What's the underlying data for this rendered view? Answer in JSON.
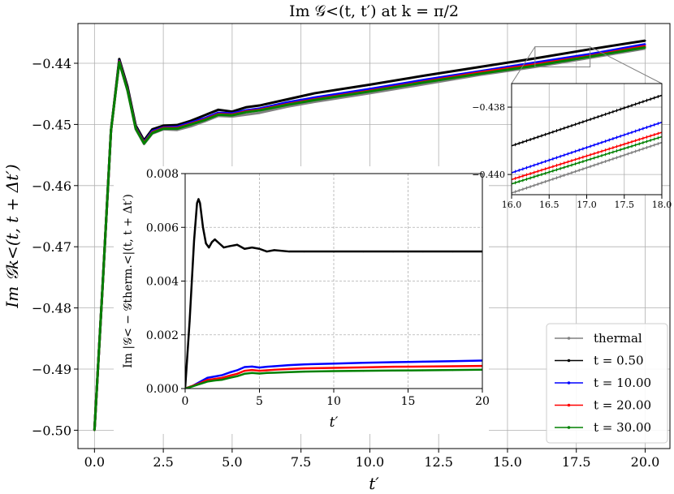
{
  "chart_data": [
    {
      "id": "main",
      "type": "line",
      "title": "Im 𝒢<(t, t′) at k = π/2",
      "xlabel": "t′",
      "ylabel": "Im 𝒢k<(t, t + Δt′)",
      "xlim": [
        -0.6,
        20.9
      ],
      "ylim": [
        -0.503,
        -0.4335
      ],
      "xticks": [
        0.0,
        2.5,
        5.0,
        7.5,
        10.0,
        12.5,
        15.0,
        17.5,
        20.0
      ],
      "xtick_labels": [
        "0.0",
        "2.5",
        "5.0",
        "7.5",
        "10.0",
        "12.5",
        "15.0",
        "17.5",
        "20.0"
      ],
      "yticks": [
        -0.5,
        -0.49,
        -0.48,
        -0.47,
        -0.46,
        -0.45,
        -0.44
      ],
      "ytick_labels": [
        "−0.50",
        "−0.49",
        "−0.48",
        "−0.47",
        "−0.46",
        "−0.45",
        "−0.44"
      ],
      "grid": true,
      "legend_placement": "bottom-right",
      "series": [
        {
          "name": "thermal",
          "color": "#808080",
          "x": [
            0,
            0.3,
            0.6,
            0.9,
            1.2,
            1.5,
            1.8,
            2.1,
            2.5,
            3.0,
            3.5,
            4.0,
            4.5,
            5.0,
            5.5,
            6.0,
            7.0,
            8.0,
            10.0,
            12.0,
            14.0,
            16.0,
            18.0,
            20.0
          ],
          "y": [
            -0.5,
            -0.476,
            -0.451,
            -0.4399,
            -0.4445,
            -0.4508,
            -0.4532,
            -0.4515,
            -0.4508,
            -0.4509,
            -0.4503,
            -0.4495,
            -0.4486,
            -0.4487,
            -0.4484,
            -0.4481,
            -0.4471,
            -0.4463,
            -0.4449,
            -0.4434,
            -0.4419,
            -0.4406,
            -0.4391,
            -0.4376
          ]
        },
        {
          "name": "t = 0.50",
          "color": "#000000",
          "x": [
            0,
            0.3,
            0.6,
            0.9,
            1.2,
            1.5,
            1.8,
            2.1,
            2.5,
            3.0,
            3.5,
            4.0,
            4.5,
            5.0,
            5.5,
            6.0,
            7.0,
            8.0,
            10.0,
            12.0,
            14.0,
            16.0,
            18.0,
            20.0
          ],
          "y": [
            -0.5,
            -0.476,
            -0.451,
            -0.4393,
            -0.4438,
            -0.4502,
            -0.4526,
            -0.4508,
            -0.4502,
            -0.4501,
            -0.4494,
            -0.4485,
            -0.4476,
            -0.4479,
            -0.4472,
            -0.4469,
            -0.4459,
            -0.4449,
            -0.4435,
            -0.442,
            -0.4406,
            -0.4392,
            -0.4377,
            -0.4363
          ]
        },
        {
          "name": "t = 10.00",
          "color": "#0000ff",
          "x": [
            0,
            0.3,
            0.6,
            0.9,
            1.2,
            1.5,
            1.8,
            2.1,
            2.5,
            3.0,
            3.5,
            4.0,
            4.5,
            5.0,
            5.5,
            6.0,
            7.0,
            8.0,
            10.0,
            12.0,
            14.0,
            16.0,
            18.0,
            20.0
          ],
          "y": [
            -0.5,
            -0.476,
            -0.451,
            -0.4396,
            -0.4442,
            -0.4505,
            -0.4529,
            -0.4511,
            -0.4505,
            -0.4504,
            -0.4497,
            -0.449,
            -0.4481,
            -0.4482,
            -0.4477,
            -0.4474,
            -0.4464,
            -0.4456,
            -0.4442,
            -0.4427,
            -0.4413,
            -0.4399,
            -0.4385,
            -0.4369
          ]
        },
        {
          "name": "t = 20.00",
          "color": "#ff0000",
          "x": [
            0,
            0.3,
            0.6,
            0.9,
            1.2,
            1.5,
            1.8,
            2.1,
            2.5,
            3.0,
            3.5,
            4.0,
            4.5,
            5.0,
            5.5,
            6.0,
            7.0,
            8.0,
            10.0,
            12.0,
            14.0,
            16.0,
            18.0,
            20.0
          ],
          "y": [
            -0.5,
            -0.476,
            -0.451,
            -0.4397,
            -0.4443,
            -0.4506,
            -0.453,
            -0.4513,
            -0.4506,
            -0.4506,
            -0.4499,
            -0.4492,
            -0.4483,
            -0.4484,
            -0.4479,
            -0.4476,
            -0.4467,
            -0.4459,
            -0.4445,
            -0.443,
            -0.4415,
            -0.4402,
            -0.4388,
            -0.4372
          ]
        },
        {
          "name": "t = 30.00",
          "color": "#008000",
          "x": [
            0,
            0.3,
            0.6,
            0.9,
            1.2,
            1.5,
            1.8,
            2.1,
            2.5,
            3.0,
            3.5,
            4.0,
            4.5,
            5.0,
            5.5,
            6.0,
            7.0,
            8.0,
            10.0,
            12.0,
            14.0,
            16.0,
            18.0,
            20.0
          ],
          "y": [
            -0.5,
            -0.476,
            -0.451,
            -0.4398,
            -0.4444,
            -0.4507,
            -0.4531,
            -0.4514,
            -0.4507,
            -0.4507,
            -0.45,
            -0.4493,
            -0.4484,
            -0.4485,
            -0.448,
            -0.4477,
            -0.4468,
            -0.446,
            -0.4446,
            -0.4431,
            -0.4417,
            -0.4404,
            -0.4389,
            -0.4374
          ]
        }
      ]
    },
    {
      "id": "difference-inset",
      "type": "line",
      "xlabel": "t′",
      "ylabel": "Im |𝒢< − 𝒢therm.<|(t, t + Δt′)",
      "xlim": [
        0,
        20
      ],
      "ylim": [
        0,
        0.008
      ],
      "xticks": [
        0,
        5,
        10,
        15,
        20
      ],
      "xtick_labels": [
        "0",
        "5",
        "10",
        "15",
        "20"
      ],
      "yticks": [
        0.0,
        0.002,
        0.004,
        0.006,
        0.008
      ],
      "ytick_labels": [
        "0.000",
        "0.002",
        "0.004",
        "0.006",
        "0.008"
      ],
      "grid": true,
      "series": [
        {
          "name": "t = 0.50",
          "color": "#000000",
          "x": [
            0,
            0.3,
            0.6,
            0.8,
            0.9,
            1.0,
            1.2,
            1.4,
            1.6,
            1.8,
            2.0,
            2.3,
            2.6,
            3.0,
            3.5,
            4.0,
            4.5,
            5.0,
            5.5,
            6.0,
            7.0,
            8.0,
            10.0,
            12.0,
            14.0,
            16.0,
            18.0,
            20.0
          ],
          "y": [
            0,
            0.0025,
            0.0055,
            0.0069,
            0.00705,
            0.0069,
            0.006,
            0.0054,
            0.00525,
            0.00545,
            0.00555,
            0.0054,
            0.00525,
            0.0053,
            0.00535,
            0.0052,
            0.00525,
            0.0052,
            0.0051,
            0.00515,
            0.0051,
            0.0051,
            0.0051,
            0.0051,
            0.0051,
            0.0051,
            0.0051,
            0.0051
          ]
        },
        {
          "name": "t = 10.00",
          "color": "#0000ff",
          "x": [
            0,
            0.5,
            1.0,
            1.5,
            2.0,
            2.5,
            3.0,
            3.5,
            4.0,
            4.5,
            5.0,
            5.5,
            6.0,
            7.0,
            8.0,
            10.0,
            12.0,
            14.0,
            16.0,
            18.0,
            20.0
          ],
          "y": [
            0,
            0.0001,
            0.00025,
            0.0004,
            0.00045,
            0.0005,
            0.0006,
            0.00068,
            0.0008,
            0.00082,
            0.00078,
            0.00081,
            0.00083,
            0.00087,
            0.0009,
            0.00093,
            0.00096,
            0.00098,
            0.001,
            0.00102,
            0.00104
          ]
        },
        {
          "name": "t = 20.00",
          "color": "#ff0000",
          "x": [
            0,
            0.5,
            1.0,
            1.5,
            2.0,
            2.5,
            3.0,
            3.5,
            4.0,
            4.5,
            5.0,
            5.5,
            6.0,
            7.0,
            8.0,
            10.0,
            12.0,
            14.0,
            16.0,
            18.0,
            20.0
          ],
          "y": [
            0,
            0.0001,
            0.0002,
            0.00032,
            0.00036,
            0.0004,
            0.00048,
            0.00055,
            0.00066,
            0.00069,
            0.00066,
            0.00068,
            0.0007,
            0.00073,
            0.00075,
            0.00077,
            0.00079,
            0.00081,
            0.00082,
            0.00083,
            0.00084
          ]
        },
        {
          "name": "t = 30.00",
          "color": "#008000",
          "x": [
            0,
            0.5,
            1.0,
            1.5,
            2.0,
            2.5,
            3.0,
            3.5,
            4.0,
            4.5,
            5.0,
            5.5,
            6.0,
            7.0,
            8.0,
            10.0,
            12.0,
            14.0,
            16.0,
            18.0,
            20.0
          ],
          "y": [
            0,
            8e-05,
            0.00017,
            0.00026,
            0.0003,
            0.00033,
            0.0004,
            0.00046,
            0.00055,
            0.00058,
            0.00056,
            0.00058,
            0.00059,
            0.00061,
            0.00063,
            0.00065,
            0.00066,
            0.00067,
            0.00068,
            0.00069,
            0.0007
          ]
        }
      ]
    },
    {
      "id": "zoom-inset",
      "type": "line",
      "xlim": [
        16.0,
        18.0
      ],
      "ylim": [
        -0.4406,
        -0.4373
      ],
      "xticks": [
        16.0,
        16.5,
        17.0,
        17.5,
        18.0
      ],
      "xtick_labels": [
        "16.0",
        "16.5",
        "17.0",
        "17.5",
        "18.0"
      ],
      "yticks": [
        -0.44,
        -0.438
      ],
      "ytick_labels": [
        "−0.440",
        "−0.438"
      ],
      "grid": true,
      "series": [
        {
          "name": "thermal",
          "color": "#808080",
          "x": [
            16.0,
            18.0
          ],
          "y": [
            -0.44055,
            -0.43905
          ]
        },
        {
          "name": "t = 0.50",
          "color": "#000000",
          "x": [
            16.0,
            18.0
          ],
          "y": [
            -0.43915,
            -0.43765
          ]
        },
        {
          "name": "t = 10.00",
          "color": "#0000ff",
          "x": [
            16.0,
            18.0
          ],
          "y": [
            -0.43995,
            -0.43845
          ]
        },
        {
          "name": "t = 20.00",
          "color": "#ff0000",
          "x": [
            16.0,
            18.0
          ],
          "y": [
            -0.44015,
            -0.43875
          ]
        },
        {
          "name": "t = 30.00",
          "color": "#008000",
          "x": [
            16.0,
            18.0
          ],
          "y": [
            -0.44028,
            -0.43888
          ]
        }
      ]
    }
  ]
}
